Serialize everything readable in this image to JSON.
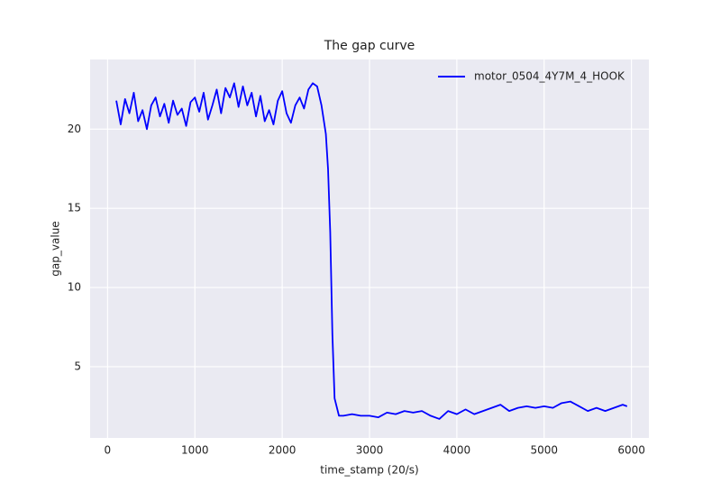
{
  "chart_data": {
    "type": "line",
    "title": "The gap curve",
    "xlabel": "time_stamp (20/s)",
    "ylabel": "gap_value",
    "x": [
      100,
      150,
      200,
      250,
      300,
      350,
      400,
      450,
      500,
      550,
      600,
      650,
      700,
      750,
      800,
      850,
      900,
      950,
      1000,
      1050,
      1100,
      1150,
      1200,
      1250,
      1300,
      1350,
      1400,
      1450,
      1500,
      1550,
      1600,
      1650,
      1700,
      1750,
      1800,
      1850,
      1900,
      1950,
      2000,
      2050,
      2100,
      2150,
      2200,
      2250,
      2300,
      2350,
      2400,
      2450,
      2500,
      2525,
      2550,
      2575,
      2600,
      2650,
      2700,
      2800,
      2900,
      3000,
      3100,
      3200,
      3300,
      3400,
      3500,
      3600,
      3700,
      3800,
      3900,
      4000,
      4100,
      4200,
      4300,
      4400,
      4500,
      4600,
      4700,
      4800,
      4900,
      5000,
      5100,
      5200,
      5300,
      5400,
      5500,
      5600,
      5700,
      5800,
      5900,
      5950
    ],
    "series": [
      {
        "name": "motor_0504_4Y7M_4_HOOK",
        "color": "#0000ff",
        "values": [
          21.8,
          20.3,
          21.9,
          21.0,
          22.3,
          20.5,
          21.2,
          20.0,
          21.5,
          22.0,
          20.8,
          21.6,
          20.4,
          21.8,
          20.9,
          21.3,
          20.2,
          21.7,
          22.0,
          21.1,
          22.3,
          20.6,
          21.5,
          22.5,
          21.0,
          22.6,
          22.0,
          22.9,
          21.4,
          22.7,
          21.5,
          22.3,
          20.8,
          22.1,
          20.5,
          21.2,
          20.3,
          21.8,
          22.4,
          21.0,
          20.4,
          21.5,
          22.0,
          21.3,
          22.5,
          22.9,
          22.7,
          21.5,
          19.7,
          17.5,
          13.5,
          7.0,
          3.0,
          1.9,
          1.9,
          2.0,
          1.9,
          1.9,
          1.8,
          2.1,
          2.0,
          2.2,
          2.1,
          2.2,
          1.9,
          1.7,
          2.2,
          2.0,
          2.3,
          2.0,
          2.2,
          2.4,
          2.6,
          2.2,
          2.4,
          2.5,
          2.4,
          2.5,
          2.4,
          2.7,
          2.8,
          2.5,
          2.2,
          2.4,
          2.2,
          2.4,
          2.6,
          2.5
        ]
      }
    ],
    "xlim": [
      -200,
      6200
    ],
    "ylim": [
      0.5,
      24.4
    ],
    "xticks": [
      0,
      1000,
      2000,
      3000,
      4000,
      5000,
      6000
    ],
    "yticks": [
      5,
      10,
      15,
      20
    ],
    "grid": true,
    "legend": "upper right"
  }
}
